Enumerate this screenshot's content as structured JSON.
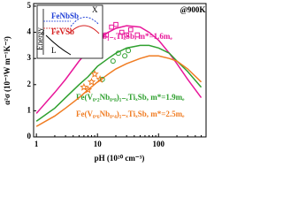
{
  "chart_data": {
    "type": "scatter",
    "title": "@900K",
    "xlabel": "pH (10²⁰ cm⁻³)",
    "ylabel": "α²σ (10⁻³W m⁻¹K⁻²)",
    "xscale": "log",
    "xlim": [
      0.9,
      600
    ],
    "xticks": [
      1,
      10,
      100
    ],
    "ylim": [
      0,
      5.1
    ],
    "yticks": [
      0,
      1,
      2,
      3,
      4,
      5
    ],
    "series": [
      {
        "name": "FeNb₁₋ₓTiₓSb, m*=1.6mₑ",
        "color": "#e8179a",
        "mode": "line",
        "x": [
          1,
          2,
          3,
          5,
          7,
          10,
          15,
          20,
          30,
          50,
          70,
          100,
          150,
          200,
          300,
          500
        ],
        "values": [
          0.9,
          1.7,
          2.2,
          2.9,
          3.3,
          3.7,
          4.0,
          4.15,
          4.25,
          4.2,
          4.0,
          3.7,
          3.2,
          2.8,
          2.2,
          1.5
        ]
      },
      {
        "name": "Fe(V₀.₂Nb₀.₈)₁₋ₓTiₓSb, m*=1.9mₑ",
        "color": "#2fa02f",
        "mode": "line",
        "x": [
          1,
          2,
          3,
          5,
          7,
          10,
          15,
          20,
          30,
          50,
          70,
          100,
          150,
          200,
          300,
          500
        ],
        "values": [
          0.6,
          1.1,
          1.5,
          2.0,
          2.3,
          2.7,
          3.0,
          3.2,
          3.4,
          3.5,
          3.5,
          3.4,
          3.2,
          2.9,
          2.5,
          1.9
        ]
      },
      {
        "name": "Fe(V₀.₆Nb₀.₄)₁₋ₓTiₓSb, m*=2.5mₑ",
        "color": "#f07c22",
        "mode": "line",
        "x": [
          1,
          2,
          3,
          5,
          7,
          10,
          15,
          20,
          30,
          50,
          70,
          100,
          150,
          200,
          300,
          500
        ],
        "values": [
          0.4,
          0.8,
          1.1,
          1.5,
          1.8,
          2.1,
          2.4,
          2.6,
          2.8,
          3.0,
          3.1,
          3.1,
          3.0,
          2.9,
          2.6,
          2.1
        ]
      },
      {
        "color": "#e8179a",
        "mode": "marker",
        "marker": "square",
        "x": [
          14,
          17,
          20,
          25,
          30,
          35,
          45
        ],
        "values": [
          3.9,
          4.2,
          4.3,
          4.0,
          3.9,
          4.1,
          3.9
        ]
      },
      {
        "color": "#2fa02f",
        "mode": "marker",
        "marker": "circle",
        "x": [
          12,
          18,
          22,
          28,
          32
        ],
        "values": [
          2.2,
          2.9,
          3.2,
          3.1,
          3.3
        ]
      },
      {
        "color": "#f07c22",
        "mode": "marker",
        "marker": "star",
        "x": [
          6,
          7,
          8,
          9,
          11
        ],
        "values": [
          1.9,
          1.8,
          2.1,
          2.4,
          2.2
        ]
      }
    ]
  },
  "inset": {
    "labels": [
      "Energy",
      "FeNbSb",
      "FeVSb",
      "X",
      "L"
    ]
  }
}
